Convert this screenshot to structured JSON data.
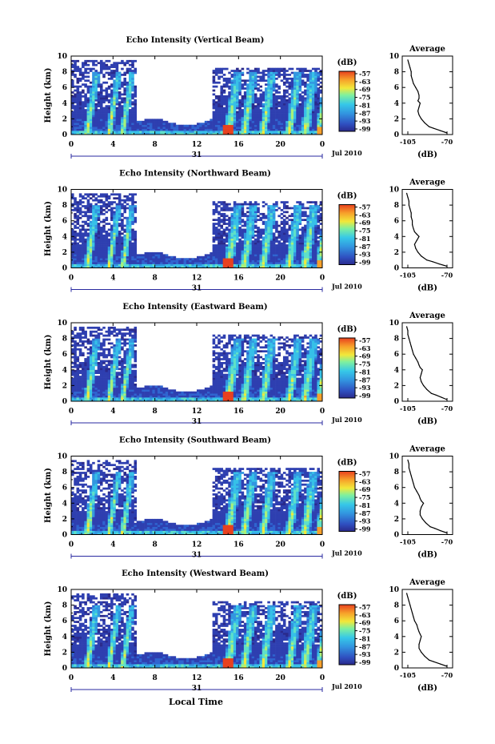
{
  "xlabel": "Local Time",
  "date_label": "Jul 2010",
  "day_label": "31",
  "cbar_unit": "(dB)",
  "avg_title": "Average",
  "avg_xlabel": "(dB)",
  "ylabel": "Height (km)",
  "colors": {
    "scale": [
      "#2a2a8c",
      "#2e3fb0",
      "#2f64d0",
      "#3296e0",
      "#36c0e8",
      "#5fe0c8",
      "#a8f07a",
      "#f2e83a",
      "#f7a02a",
      "#e8401e"
    ]
  },
  "chart_data": [
    {
      "type": "heatmap",
      "title": "Echo Intensity (Vertical Beam)",
      "x_ticks": [
        "0",
        "4",
        "8",
        "12",
        "16",
        "20",
        "0"
      ],
      "y_ticks": [
        "0",
        "2",
        "4",
        "6",
        "8",
        "10"
      ],
      "xlim": [
        0,
        24
      ],
      "ylim": [
        0,
        10
      ],
      "colorbar_ticks": [
        "-57",
        "-63",
        "-69",
        "-75",
        "-81",
        "-87",
        "-93",
        "-99"
      ],
      "average_profile": {
        "x_ticks": [
          "-105",
          "-70"
        ],
        "y_ticks": [
          "0",
          "2",
          "4",
          "6",
          "8",
          "10"
        ],
        "xlim": [
          -110,
          -65
        ],
        "ylim": [
          0,
          10
        ],
        "height": [
          0.2,
          0.5,
          0.8,
          1.0,
          1.5,
          2.0,
          2.5,
          3.0,
          3.5,
          4.0,
          4.3,
          4.6,
          5.0,
          5.5,
          6.0,
          6.5,
          7.0,
          7.5,
          8.0,
          8.5,
          9.0,
          9.5
        ],
        "db": [
          -70,
          -76,
          -82,
          -86,
          -90,
          -93,
          -95,
          -96,
          -95,
          -94,
          -96,
          -95,
          -95,
          -96,
          -98,
          -100,
          -101,
          -102,
          -102,
          -103,
          -104,
          -105
        ]
      }
    },
    {
      "type": "heatmap",
      "title": "Echo Intensity (Northward Beam)",
      "x_ticks": [
        "0",
        "4",
        "8",
        "12",
        "16",
        "20",
        "0"
      ],
      "y_ticks": [
        "0",
        "2",
        "4",
        "6",
        "8",
        "10"
      ],
      "xlim": [
        0,
        24
      ],
      "ylim": [
        0,
        10
      ],
      "colorbar_ticks": [
        "-57",
        "-63",
        "-69",
        "-75",
        "-81",
        "-87",
        "-93",
        "-99"
      ],
      "average_profile": {
        "x_ticks": [
          "-105",
          "-70"
        ],
        "y_ticks": [
          "0",
          "2",
          "4",
          "6",
          "8",
          "10"
        ],
        "xlim": [
          -110,
          -65
        ],
        "ylim": [
          0,
          10
        ],
        "height": [
          0.2,
          0.5,
          0.8,
          1.0,
          1.5,
          2.0,
          2.5,
          3.0,
          3.5,
          4.0,
          4.3,
          4.6,
          5.0,
          5.5,
          6.0,
          6.5,
          7.0,
          7.5,
          8.0,
          8.5,
          9.0,
          9.5
        ],
        "db": [
          -70,
          -77,
          -83,
          -88,
          -93,
          -96,
          -98,
          -99,
          -97,
          -95,
          -97,
          -99,
          -100,
          -101,
          -101,
          -102,
          -102,
          -103,
          -104,
          -104,
          -105,
          -106
        ]
      }
    },
    {
      "type": "heatmap",
      "title": "Echo Intensity (Eastward Beam)",
      "x_ticks": [
        "0",
        "4",
        "8",
        "12",
        "16",
        "20",
        "0"
      ],
      "y_ticks": [
        "0",
        "2",
        "4",
        "6",
        "8",
        "10"
      ],
      "xlim": [
        0,
        24
      ],
      "ylim": [
        0,
        10
      ],
      "colorbar_ticks": [
        "-57",
        "-63",
        "-69",
        "-75",
        "-81",
        "-87",
        "-93",
        "-99"
      ],
      "average_profile": {
        "x_ticks": [
          "-105",
          "-70"
        ],
        "y_ticks": [
          "0",
          "2",
          "4",
          "6",
          "8",
          "10"
        ],
        "xlim": [
          -110,
          -65
        ],
        "ylim": [
          0,
          10
        ],
        "height": [
          0.2,
          0.5,
          0.8,
          1.0,
          1.5,
          2.0,
          2.5,
          3.0,
          3.5,
          4.0,
          4.3,
          4.6,
          5.0,
          5.5,
          6.0,
          6.5,
          7.0,
          7.5,
          8.0,
          8.5,
          9.0,
          9.5
        ],
        "db": [
          -70,
          -75,
          -80,
          -84,
          -88,
          -91,
          -93,
          -94,
          -93,
          -92,
          -94,
          -95,
          -96,
          -98,
          -100,
          -101,
          -102,
          -103,
          -104,
          -105,
          -105,
          -106
        ]
      }
    },
    {
      "type": "heatmap",
      "title": "Echo Intensity (Southward Beam)",
      "x_ticks": [
        "0",
        "4",
        "8",
        "12",
        "16",
        "20",
        "0"
      ],
      "y_ticks": [
        "0",
        "2",
        "4",
        "6",
        "8",
        "10"
      ],
      "xlim": [
        0,
        24
      ],
      "ylim": [
        0,
        10
      ],
      "colorbar_ticks": [
        "-57",
        "-63",
        "-69",
        "-75",
        "-81",
        "-87",
        "-93",
        "-99"
      ],
      "average_profile": {
        "x_ticks": [
          "-105",
          "-70"
        ],
        "y_ticks": [
          "0",
          "2",
          "4",
          "6",
          "8",
          "10"
        ],
        "xlim": [
          -110,
          -65
        ],
        "ylim": [
          0,
          10
        ],
        "height": [
          0.2,
          0.5,
          0.8,
          1.0,
          1.5,
          2.0,
          2.5,
          3.0,
          3.5,
          4.0,
          4.3,
          4.6,
          5.0,
          5.5,
          6.0,
          6.5,
          7.0,
          7.5,
          8.0,
          8.5,
          9.0,
          9.5
        ],
        "db": [
          -70,
          -76,
          -81,
          -85,
          -89,
          -92,
          -94,
          -94,
          -93,
          -91,
          -93,
          -94,
          -95,
          -97,
          -99,
          -100,
          -101,
          -102,
          -103,
          -104,
          -104,
          -105
        ]
      }
    },
    {
      "type": "heatmap",
      "title": "Echo Intensity (Westward Beam)",
      "x_ticks": [
        "0",
        "4",
        "8",
        "12",
        "16",
        "20",
        "0"
      ],
      "y_ticks": [
        "0",
        "2",
        "4",
        "6",
        "8",
        "10"
      ],
      "xlim": [
        0,
        24
      ],
      "ylim": [
        0,
        10
      ],
      "colorbar_ticks": [
        "-57",
        "-63",
        "-69",
        "-75",
        "-81",
        "-87",
        "-93",
        "-99"
      ],
      "average_profile": {
        "x_ticks": [
          "-105",
          "-70"
        ],
        "y_ticks": [
          "0",
          "2",
          "4",
          "6",
          "8",
          "10"
        ],
        "xlim": [
          -110,
          -65
        ],
        "ylim": [
          0,
          10
        ],
        "height": [
          0.2,
          0.5,
          0.8,
          1.0,
          1.5,
          2.0,
          2.5,
          3.0,
          3.5,
          4.0,
          4.3,
          4.6,
          5.0,
          5.5,
          6.0,
          6.5,
          7.0,
          7.5,
          8.0,
          8.5,
          9.0,
          9.5
        ],
        "db": [
          -70,
          -76,
          -82,
          -86,
          -90,
          -93,
          -95,
          -95,
          -94,
          -93,
          -94,
          -95,
          -96,
          -97,
          -99,
          -100,
          -101,
          -102,
          -103,
          -104,
          -105,
          -106
        ]
      }
    }
  ]
}
